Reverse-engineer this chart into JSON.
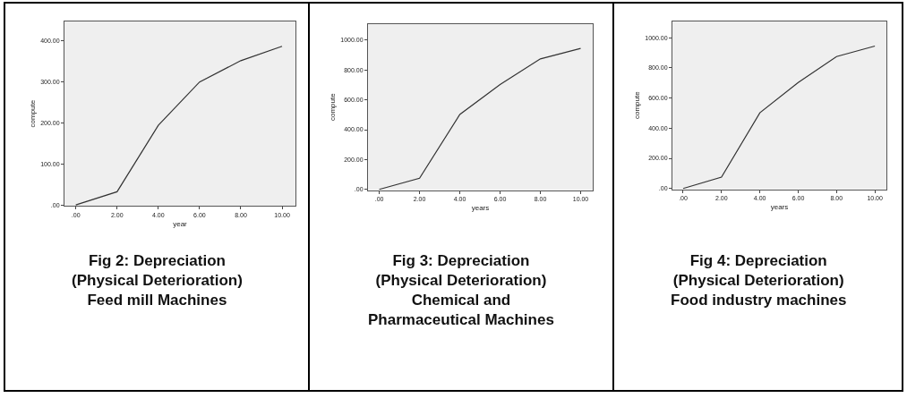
{
  "chart_data": [
    {
      "type": "line",
      "title": "Fig 2: Depreciation\n(Physical Deterioration)\nFeed mill Machines",
      "xlabel": "year",
      "ylabel": "compute",
      "x": [
        0,
        2,
        4,
        6,
        8,
        10
      ],
      "series": [
        {
          "color": "#333333",
          "values": [
            0,
            32,
            194,
            300,
            352,
            387
          ]
        }
      ],
      "xlim": [
        -0.55,
        10.65
      ],
      "ylim": [
        -3,
        448
      ],
      "xticks": [
        {
          "value": 0,
          "label": ".00"
        },
        {
          "value": 2,
          "label": "2.00"
        },
        {
          "value": 4,
          "label": "4.00"
        },
        {
          "value": 6,
          "label": "6.00"
        },
        {
          "value": 8,
          "label": "8.00"
        },
        {
          "value": 10,
          "label": "10.00"
        }
      ],
      "yticks": [
        {
          "value": 0,
          "label": ".00"
        },
        {
          "value": 100,
          "label": "100.00"
        },
        {
          "value": 200,
          "label": "200.00"
        },
        {
          "value": 300,
          "label": "300.00"
        },
        {
          "value": 400,
          "label": "400.00"
        }
      ],
      "grid": false
    },
    {
      "type": "line",
      "title": "Fig 3: Depreciation\n(Physical Deterioration)\nChemical and\nPharmaceutical Machines",
      "xlabel": "years",
      "ylabel": "compute",
      "x": [
        0,
        2,
        4,
        6,
        8,
        10
      ],
      "series": [
        {
          "color": "#333333",
          "values": [
            0,
            75,
            502,
            703,
            875,
            945
          ]
        }
      ],
      "xlim": [
        -0.56,
        10.6
      ],
      "ylim": [
        -5,
        1109
      ],
      "xticks": [
        {
          "value": 0,
          "label": ".00"
        },
        {
          "value": 2,
          "label": "2.00"
        },
        {
          "value": 4,
          "label": "4.00"
        },
        {
          "value": 6,
          "label": "6.00"
        },
        {
          "value": 8,
          "label": "8.00"
        },
        {
          "value": 10,
          "label": "10.00"
        }
      ],
      "yticks": [
        {
          "value": 0,
          "label": ".00"
        },
        {
          "value": 200,
          "label": "200.00"
        },
        {
          "value": 400,
          "label": "400.00"
        },
        {
          "value": 600,
          "label": "600.00"
        },
        {
          "value": 800,
          "label": "800.00"
        },
        {
          "value": 1000,
          "label": "1000.00"
        }
      ],
      "grid": false
    },
    {
      "type": "line",
      "title": "Fig 4: Depreciation\n(Physical Deterioration)\nFood industry machines",
      "xlabel": "years",
      "ylabel": "compute",
      "x": [
        0,
        2,
        4,
        6,
        8,
        10
      ],
      "series": [
        {
          "color": "#333333",
          "values": [
            0,
            75,
            502,
            703,
            875,
            945
          ]
        }
      ],
      "xlim": [
        -0.56,
        10.6
      ],
      "ylim": [
        -5,
        1109
      ],
      "xticks": [
        {
          "value": 0,
          "label": ".00"
        },
        {
          "value": 2,
          "label": "2.00"
        },
        {
          "value": 4,
          "label": "4.00"
        },
        {
          "value": 6,
          "label": "6.00"
        },
        {
          "value": 8,
          "label": "8.00"
        },
        {
          "value": 10,
          "label": "10.00"
        }
      ],
      "yticks": [
        {
          "value": 0,
          "label": ".00"
        },
        {
          "value": 200,
          "label": "200.00"
        },
        {
          "value": 400,
          "label": "400.00"
        },
        {
          "value": 600,
          "label": "600.00"
        },
        {
          "value": 800,
          "label": "800.00"
        },
        {
          "value": 1000,
          "label": "1000.00"
        }
      ],
      "grid": false
    }
  ]
}
